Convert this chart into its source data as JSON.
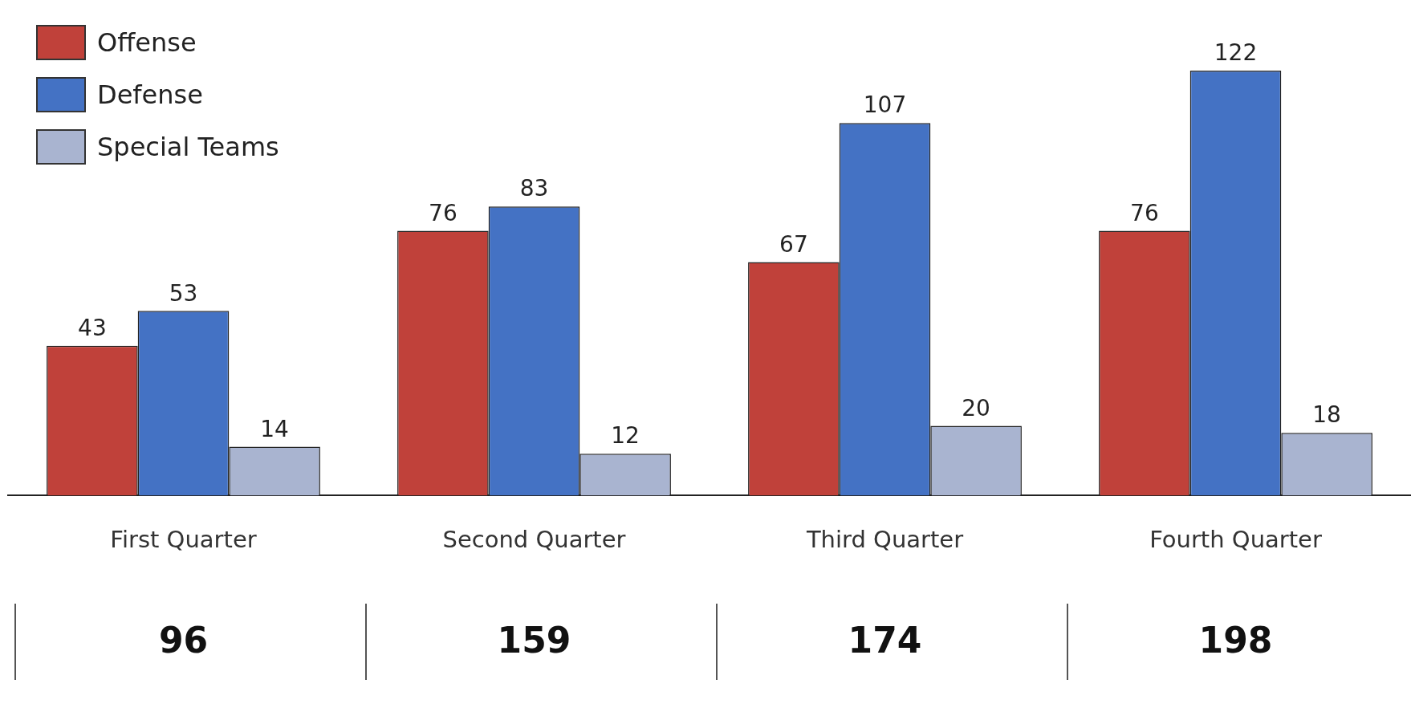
{
  "chart_data": {
    "type": "bar",
    "categories": [
      "First Quarter",
      "Second Quarter",
      "Third Quarter",
      "Fourth Quarter"
    ],
    "series": [
      {
        "name": "Offense",
        "color": "#c0413a",
        "values": [
          43,
          76,
          67,
          76
        ]
      },
      {
        "name": "Defense",
        "color": "#4472c4",
        "values": [
          53,
          83,
          107,
          122
        ]
      },
      {
        "name": "Special Teams",
        "color": "#a9b4d0",
        "values": [
          14,
          12,
          20,
          18
        ]
      }
    ],
    "data_labels": true,
    "legend": "top left",
    "annotations": [
      "96",
      "159",
      "174",
      "198"
    ]
  }
}
